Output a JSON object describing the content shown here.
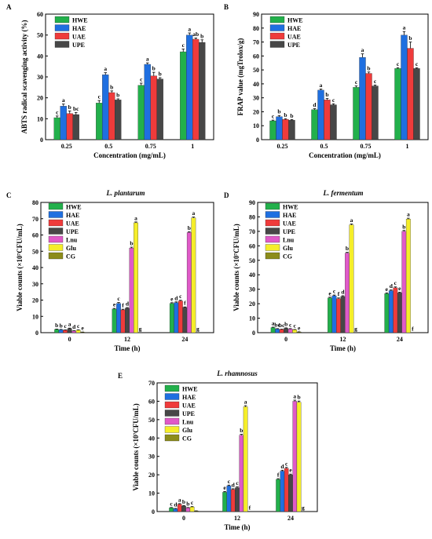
{
  "colors": {
    "HWE": "#22b04b",
    "HAE": "#1f6fe0",
    "UAE": "#ef3b3b",
    "UPE": "#474747",
    "Lnu": "#e05ac8",
    "Glu": "#f5ee2a",
    "CG": "#8c8c1a"
  },
  "chart_data": [
    {
      "type": "bar",
      "panel": "A",
      "title": "",
      "xlabel": "Concentration (mg/mL)",
      "ylabel": "ABTS radical scavenging activity (%)",
      "ylim": [
        0,
        60
      ],
      "yticks": [
        "0",
        "10",
        "20",
        "30",
        "40",
        "50",
        "60"
      ],
      "categories": [
        "0.25",
        "0.5",
        "0.75",
        "1"
      ],
      "legend": "top-left",
      "series": [
        {
          "name": "HWE",
          "values": [
            10.5,
            17.5,
            26,
            42
          ],
          "errors": [
            0.8,
            1.2,
            1.0,
            1.3
          ],
          "labels": [
            "c",
            "c",
            "c",
            "c"
          ]
        },
        {
          "name": "HAE",
          "values": [
            16,
            31,
            36,
            50
          ],
          "errors": [
            1.0,
            1.0,
            0.7,
            1.0
          ],
          "labels": [
            "a",
            "a",
            "a",
            "a"
          ]
        },
        {
          "name": "UAE",
          "values": [
            12.5,
            22.5,
            30.5,
            48
          ],
          "errors": [
            1.2,
            0.8,
            1.7,
            0.6
          ],
          "labels": [
            "b",
            "b",
            "b",
            "ab"
          ]
        },
        {
          "name": "UPE",
          "values": [
            12,
            19,
            29,
            46.5
          ],
          "errors": [
            1.0,
            0.5,
            0.6,
            1.2
          ],
          "labels": [
            "bc",
            "b",
            "b",
            "b"
          ]
        }
      ]
    },
    {
      "type": "bar",
      "panel": "B",
      "title": "",
      "xlabel": "Concentration (mg/mL)",
      "ylabel": "FRAP value (mgTrolox/g)",
      "ylim": [
        0,
        90
      ],
      "yticks": [
        "0",
        "10",
        "20",
        "30",
        "40",
        "50",
        "60",
        "70",
        "80",
        "90"
      ],
      "categories": [
        "0.25",
        "0.5",
        "0.75",
        "1"
      ],
      "legend": "top-left",
      "series": [
        {
          "name": "HWE",
          "values": [
            13.5,
            21.5,
            37.5,
            51
          ],
          "errors": [
            0.5,
            0.7,
            1.0,
            0.6
          ],
          "labels": [
            "c",
            "d",
            "c",
            "c"
          ]
        },
        {
          "name": "HAE",
          "values": [
            16.5,
            35.5,
            59,
            75
          ],
          "errors": [
            0.8,
            0.8,
            2.5,
            2.5
          ],
          "labels": [
            "b",
            "a",
            "a",
            "a"
          ]
        },
        {
          "name": "UAE",
          "values": [
            14.5,
            28.5,
            47.5,
            65.5
          ],
          "errors": [
            0.5,
            1.0,
            1.0,
            4.5
          ],
          "labels": [
            "b",
            "b",
            "b",
            "b"
          ]
        },
        {
          "name": "UPE",
          "values": [
            14,
            25,
            38.5,
            51
          ],
          "errors": [
            0.4,
            0.7,
            0.7,
            0.5
          ],
          "labels": [
            "b",
            "c",
            "c",
            "c"
          ]
        }
      ]
    },
    {
      "type": "bar",
      "panel": "C",
      "title": "L. plantarum",
      "xlabel": "Time (h)",
      "ylabel": "Viable counts (×10⁷CFU/mL)",
      "ylim": [
        0,
        80
      ],
      "yticks": [
        "0",
        "10",
        "20",
        "30",
        "40",
        "50",
        "60",
        "70",
        "80"
      ],
      "categories": [
        "0",
        "12",
        "24"
      ],
      "legend": "top-left",
      "series": [
        {
          "name": "HWE",
          "values": [
            2.0,
            14.5,
            18
          ],
          "errors": [
            0.2,
            0.4,
            0.4
          ],
          "labels": [
            "b",
            "e",
            "e"
          ]
        },
        {
          "name": "HAE",
          "values": [
            1.8,
            18,
            18.5
          ],
          "errors": [
            0.2,
            0.5,
            0.4
          ],
          "labels": [
            "b",
            "c",
            "d"
          ]
        },
        {
          "name": "UAE",
          "values": [
            1.5,
            14,
            19.5
          ],
          "errors": [
            0.2,
            0.4,
            0.4
          ],
          "labels": [
            "c",
            "f",
            "c"
          ]
        },
        {
          "name": "UPE",
          "values": [
            2.5,
            15,
            15.5
          ],
          "errors": [
            0.3,
            0.4,
            0.3
          ],
          "labels": [
            "a",
            "d",
            "f"
          ]
        },
        {
          "name": "Lnu",
          "values": [
            1.0,
            52,
            61.5
          ],
          "errors": [
            0.2,
            0.5,
            0.5
          ],
          "labels": [
            "d",
            "b",
            "b"
          ]
        },
        {
          "name": "Glu",
          "values": [
            1.5,
            67.5,
            70.5
          ],
          "errors": [
            0.2,
            0.5,
            0.5
          ],
          "labels": [
            "c",
            "a",
            "a"
          ]
        },
        {
          "name": "CG",
          "values": [
            0.3,
            0,
            0
          ],
          "errors": [
            0.1,
            0,
            0
          ],
          "labels": [
            "e",
            "g",
            "g"
          ]
        }
      ]
    },
    {
      "type": "bar",
      "panel": "D",
      "title": "L. fermentum",
      "xlabel": "Time (h)",
      "ylabel": "Viable counts (×10⁷CFU/mL)",
      "ylim": [
        0,
        90
      ],
      "yticks": [
        "0",
        "10",
        "20",
        "30",
        "40",
        "50",
        "60",
        "70",
        "80",
        "90"
      ],
      "categories": [
        "0",
        "12",
        "24"
      ],
      "legend": "top-left",
      "series": [
        {
          "name": "HWE",
          "values": [
            3.5,
            24,
            27
          ],
          "errors": [
            0.3,
            0.5,
            0.5
          ],
          "labels": [
            "a",
            "e",
            "e"
          ]
        },
        {
          "name": "HAE",
          "values": [
            2.5,
            25.5,
            29
          ],
          "errors": [
            0.3,
            0.5,
            0.5
          ],
          "labels": [
            "bc",
            "c",
            "d"
          ]
        },
        {
          "name": "UAE",
          "values": [
            2.2,
            23.5,
            31
          ],
          "errors": [
            0.2,
            0.5,
            0.6
          ],
          "labels": [
            "bc",
            "f",
            "c"
          ]
        },
        {
          "name": "UPE",
          "values": [
            3.0,
            25,
            27.5
          ],
          "errors": [
            0.3,
            0.5,
            0.5
          ],
          "labels": [
            "b",
            "d",
            "e"
          ]
        },
        {
          "name": "Lnu",
          "values": [
            2.5,
            55,
            70
          ],
          "errors": [
            0.3,
            0.5,
            0.6
          ],
          "labels": [
            "c",
            "b",
            "b"
          ]
        },
        {
          "name": "Glu",
          "values": [
            2.0,
            74.5,
            78.5
          ],
          "errors": [
            0.2,
            0.6,
            0.6
          ],
          "labels": [
            "c",
            "a",
            "a"
          ]
        },
        {
          "name": "CG",
          "values": [
            0.5,
            0,
            0
          ],
          "errors": [
            0.1,
            0,
            0
          ],
          "labels": [
            "e",
            "g",
            "f"
          ]
        }
      ]
    },
    {
      "type": "bar",
      "panel": "E",
      "title": "L. rhamnosus",
      "xlabel": "Time (h)",
      "ylabel": "Viable counts (×10⁷CFU/mL)",
      "ylim": [
        0,
        70
      ],
      "yticks": [
        "0",
        "10",
        "20",
        "30",
        "40",
        "50",
        "60",
        "70"
      ],
      "categories": [
        "0",
        "12",
        "24"
      ],
      "legend": "top-left",
      "series": [
        {
          "name": "HWE",
          "values": [
            2.0,
            10.5,
            17.5
          ],
          "errors": [
            0.2,
            0.4,
            0.4
          ],
          "labels": [
            "c",
            "e",
            "f"
          ]
        },
        {
          "name": "HAE",
          "values": [
            1.5,
            14,
            22
          ],
          "errors": [
            0.2,
            0.4,
            0.5
          ],
          "labels": [
            "d",
            "c",
            "d"
          ]
        },
        {
          "name": "UAE",
          "values": [
            4.0,
            12,
            23.5
          ],
          "errors": [
            0.3,
            0.4,
            0.5
          ],
          "labels": [
            "a",
            "d",
            "c"
          ]
        },
        {
          "name": "UPE",
          "values": [
            3.0,
            13,
            20
          ],
          "errors": [
            0.3,
            0.4,
            0.4
          ],
          "labels": [
            "b",
            "c",
            "e"
          ]
        },
        {
          "name": "Lnu",
          "values": [
            2.0,
            41.5,
            60
          ],
          "errors": [
            0.2,
            0.5,
            0.6
          ],
          "labels": [
            "b",
            "b",
            "a"
          ]
        },
        {
          "name": "Glu",
          "values": [
            2.5,
            57,
            59.5
          ],
          "errors": [
            0.2,
            0.6,
            0.6
          ],
          "labels": [
            "c",
            "a",
            "b"
          ]
        },
        {
          "name": "CG",
          "values": [
            0.3,
            0,
            0
          ],
          "errors": [
            0.1,
            0,
            0
          ],
          "labels": [
            "",
            "f",
            "g"
          ]
        }
      ]
    }
  ]
}
